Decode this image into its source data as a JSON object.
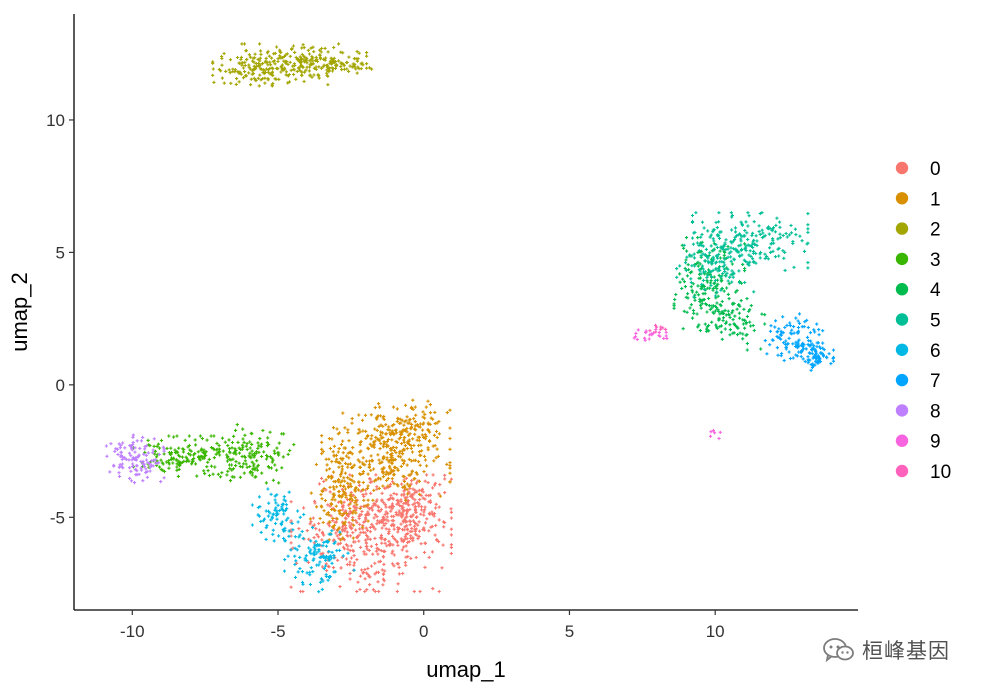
{
  "chart_data": {
    "type": "scatter",
    "xlabel": "umap_1",
    "ylabel": "umap_2",
    "xlim": [
      -12.0,
      14.9
    ],
    "ylim": [
      -8.5,
      14.0
    ],
    "xticks": [
      -10,
      -5,
      0,
      5,
      10
    ],
    "xtick_labels": [
      "-10",
      "-5",
      "0",
      "5",
      "10"
    ],
    "yticks": [
      -5,
      0,
      5,
      10
    ],
    "ytick_labels": [
      "-5",
      "0",
      "5",
      "10"
    ],
    "grid": false,
    "legend_placement": "right",
    "series": [
      {
        "name": "0",
        "color": "#F8766D",
        "point_count": 640,
        "clusters": [
          {
            "center": [
              -1.8,
              -5.6
            ],
            "spread": [
              1.25,
              1.0
            ],
            "weight": 0.75
          },
          {
            "center": [
              -0.6,
              -4.6
            ],
            "spread": [
              0.6,
              0.6
            ],
            "weight": 0.25
          }
        ]
      },
      {
        "name": "1",
        "color": "#D89000",
        "point_count": 580,
        "clusters": [
          {
            "center": [
              -1.3,
              -2.6
            ],
            "spread": [
              1.0,
              0.8
            ],
            "weight": 0.6
          },
          {
            "center": [
              -2.9,
              -4.2
            ],
            "spread": [
              0.45,
              0.75
            ],
            "weight": 0.25
          },
          {
            "center": [
              -0.4,
              -1.5
            ],
            "spread": [
              0.55,
              0.45
            ],
            "weight": 0.15
          }
        ]
      },
      {
        "name": "2",
        "color": "#A3A500",
        "point_count": 360,
        "clusters": [
          {
            "center": [
              -4.6,
              12.1
            ],
            "spread": [
              1.2,
              0.35
            ],
            "weight": 0.7
          },
          {
            "center": [
              -6.1,
              11.9
            ],
            "spread": [
              0.5,
              0.28
            ],
            "weight": 0.15
          },
          {
            "center": [
              -3.0,
              12.1
            ],
            "spread": [
              0.55,
              0.15
            ],
            "weight": 0.15
          }
        ]
      },
      {
        "name": "3",
        "color": "#39B600",
        "point_count": 300,
        "clusters": [
          {
            "center": [
              -6.0,
              -2.6
            ],
            "spread": [
              0.7,
              0.5
            ],
            "weight": 0.5
          },
          {
            "center": [
              -8.2,
              -2.7
            ],
            "spread": [
              0.8,
              0.35
            ],
            "weight": 0.5
          }
        ]
      },
      {
        "name": "4",
        "color": "#00BB4E",
        "point_count": 260,
        "clusters": [
          {
            "center": [
              9.8,
              3.8
            ],
            "spread": [
              0.55,
              0.8
            ],
            "weight": 0.7
          },
          {
            "center": [
              10.6,
              2.4
            ],
            "spread": [
              0.5,
              0.5
            ],
            "weight": 0.3
          }
        ]
      },
      {
        "name": "5",
        "color": "#00BF96",
        "point_count": 300,
        "clusters": [
          {
            "center": [
              11.2,
              5.4
            ],
            "spread": [
              0.9,
              0.5
            ],
            "weight": 0.6
          },
          {
            "center": [
              10.0,
              4.6
            ],
            "spread": [
              0.6,
              0.6
            ],
            "weight": 0.4
          }
        ]
      },
      {
        "name": "6",
        "color": "#00B8E4",
        "point_count": 190,
        "clusters": [
          {
            "center": [
              -3.6,
              -6.6
            ],
            "spread": [
              0.55,
              0.55
            ],
            "weight": 0.6
          },
          {
            "center": [
              -5.0,
              -4.9
            ],
            "spread": [
              0.4,
              0.45
            ],
            "weight": 0.4
          }
        ]
      },
      {
        "name": "7",
        "color": "#00A5FF",
        "point_count": 170,
        "clusters": [
          {
            "center": [
              12.7,
              1.8
            ],
            "spread": [
              0.45,
              0.4
            ],
            "weight": 0.55
          },
          {
            "center": [
              13.4,
              1.1
            ],
            "spread": [
              0.3,
              0.25
            ],
            "weight": 0.45
          }
        ]
      },
      {
        "name": "8",
        "color": "#BF80FF",
        "point_count": 120,
        "clusters": [
          {
            "center": [
              -9.9,
              -2.8
            ],
            "spread": [
              0.45,
              0.45
            ],
            "weight": 1.0
          }
        ]
      },
      {
        "name": "9",
        "color": "#F863DF",
        "point_count": 30,
        "clusters": [
          {
            "center": [
              7.8,
              1.9
            ],
            "spread": [
              0.35,
              0.1
            ],
            "weight": 0.8
          },
          {
            "center": [
              10.0,
              -1.9
            ],
            "spread": [
              0.08,
              0.08
            ],
            "weight": 0.2
          }
        ]
      },
      {
        "name": "10",
        "color": "#FF62BC",
        "point_count": 8,
        "clusters": [
          {
            "center": [
              8.2,
              2.1
            ],
            "spread": [
              0.2,
              0.1
            ],
            "weight": 1.0
          }
        ]
      }
    ],
    "watermark_text": "桓峰基因",
    "watermark_icon": "wechat-icon"
  }
}
